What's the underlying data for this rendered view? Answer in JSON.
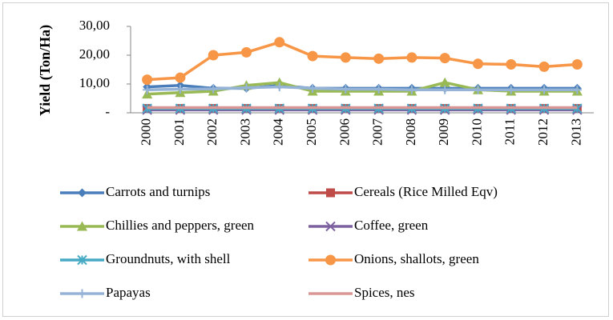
{
  "chart_data": {
    "type": "line",
    "ylabel": "Yield (Ton/Ha)",
    "categories": [
      "2000",
      "2001",
      "2002",
      "2003",
      "2004",
      "2005",
      "2006",
      "2007",
      "2008",
      "2009",
      "2010",
      "2011",
      "2012",
      "2013"
    ],
    "ylim": [
      0,
      30
    ],
    "yticks": [
      {
        "value": 0,
        "label": "-"
      },
      {
        "value": 10,
        "label": "10,00"
      },
      {
        "value": 20,
        "label": "20,00"
      },
      {
        "value": 30,
        "label": "30,00"
      }
    ],
    "series": [
      {
        "name": "Carrots and turnips",
        "color": "#4a7ebb",
        "marker": "diamond",
        "values": [
          9,
          9.5,
          8.5,
          8.5,
          9.5,
          8.5,
          8.5,
          8.5,
          8.5,
          8.5,
          8.5,
          8.5,
          8.5,
          8.5
        ]
      },
      {
        "name": "Cereals (Rice Milled Eqv)",
        "color": "#be4b48",
        "marker": "square",
        "values": [
          1.5,
          1.5,
          1.5,
          1.5,
          1.5,
          1.5,
          1.5,
          1.5,
          1.5,
          1.5,
          1.5,
          1.5,
          1.5,
          1.5
        ]
      },
      {
        "name": "Chillies and peppers, green",
        "color": "#98b954",
        "marker": "triangle",
        "values": [
          6.5,
          7,
          7.5,
          9.5,
          10.5,
          7.5,
          7.5,
          7.5,
          7.5,
          10.5,
          8,
          7.5,
          7.5,
          7.5
        ]
      },
      {
        "name": "Coffee, green",
        "color": "#7d60a0",
        "marker": "cross",
        "values": [
          1,
          1,
          1,
          1,
          1,
          1,
          1,
          1,
          1,
          1,
          1,
          1,
          1,
          1
        ]
      },
      {
        "name": "Groundnuts, with shell",
        "color": "#46aac5",
        "marker": "star",
        "values": [
          1.5,
          1.5,
          1.5,
          1.5,
          1.5,
          1.5,
          1.5,
          1.5,
          1.5,
          1.5,
          1.5,
          1.5,
          1.5,
          1.5
        ]
      },
      {
        "name": "Onions, shallots, green",
        "color": "#f79646",
        "marker": "circle",
        "values": [
          11.5,
          12.2,
          20,
          21,
          24.5,
          19.7,
          19.2,
          18.8,
          19.2,
          19,
          17,
          16.8,
          16,
          16.8
        ]
      },
      {
        "name": "Papayas",
        "color": "#95b3d7",
        "marker": "plus",
        "values": [
          8,
          8.2,
          8.3,
          8.7,
          9,
          8.5,
          8.2,
          8.2,
          8,
          8,
          8,
          8,
          8,
          8
        ]
      },
      {
        "name": "Spices, nes",
        "color": "#d99694",
        "marker": "none",
        "values": [
          1.8,
          1.8,
          1.8,
          1.8,
          1.8,
          1.8,
          1.8,
          1.8,
          1.8,
          1.8,
          1.8,
          1.8,
          1.8,
          1.8
        ]
      }
    ]
  }
}
